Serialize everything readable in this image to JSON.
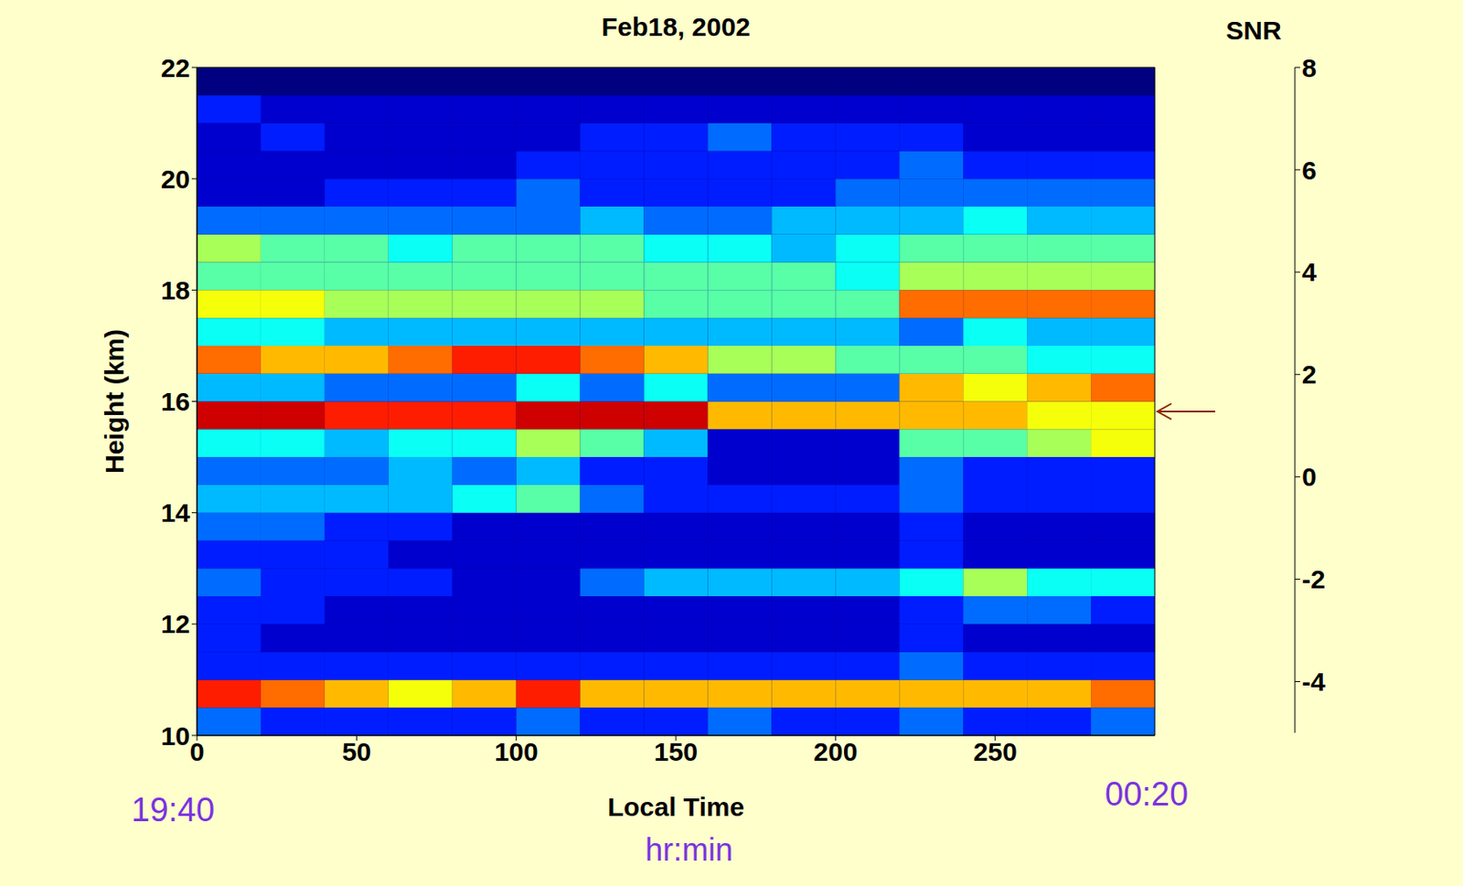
{
  "chart_data": {
    "type": "heatmap",
    "title": "Feb18, 2002",
    "x_label": "Local Time",
    "y_label": "Height (km)",
    "xlim": [
      0,
      300
    ],
    "xticks": [
      0,
      50,
      100,
      150,
      200,
      250
    ],
    "ylim": [
      10,
      22
    ],
    "yticks": [
      10,
      12,
      14,
      16,
      18,
      20,
      22
    ],
    "x_bins": [
      0,
      20,
      40,
      60,
      80,
      100,
      120,
      140,
      160,
      180,
      200,
      220,
      240,
      260,
      280,
      300
    ],
    "y_bins": [
      10,
      10.5,
      11,
      11.5,
      12,
      12.5,
      13,
      13.5,
      14,
      14.5,
      15,
      15.5,
      16,
      16.5,
      17,
      17.5,
      18,
      18.5,
      19,
      19.5,
      20,
      20.5,
      21,
      21.5,
      22
    ],
    "cells": [
      [
        -2,
        -3,
        -3,
        -3,
        -3,
        -2,
        -3,
        -3,
        -2,
        -3,
        -3,
        -2,
        -3,
        -3,
        -2
      ],
      [
        6,
        5,
        4,
        3,
        4,
        6,
        4,
        4,
        4,
        4,
        4,
        4,
        4,
        4,
        5
      ],
      [
        -3,
        -3,
        -3,
        -3,
        -3,
        -3,
        -3,
        -3,
        -3,
        -3,
        -3,
        -2,
        -3,
        -3,
        -3
      ],
      [
        -3,
        -4,
        -4,
        -4,
        -4,
        -4,
        -4,
        -4,
        -4,
        -4,
        -4,
        -3,
        -4,
        -4,
        -4
      ],
      [
        -3,
        -3,
        -4,
        -4,
        -4,
        -4,
        -4,
        -4,
        -4,
        -4,
        -4,
        -3,
        -2,
        -2,
        -3
      ],
      [
        -2,
        -3,
        -3,
        -3,
        -4,
        -4,
        -2,
        -1,
        -1,
        -1,
        -1,
        0,
        2,
        0,
        0
      ],
      [
        -3,
        -3,
        -3,
        -4,
        -4,
        -4,
        -4,
        -4,
        -4,
        -4,
        -4,
        -3,
        -4,
        -4,
        -4
      ],
      [
        -2,
        -2,
        -3,
        -3,
        -4,
        -4,
        -4,
        -4,
        -4,
        -4,
        -4,
        -3,
        -4,
        -4,
        -4
      ],
      [
        -1,
        -1,
        -1,
        -1,
        0,
        1,
        -2,
        -3,
        -3,
        -3,
        -3,
        -2,
        -3,
        -3,
        -3
      ],
      [
        -2,
        -2,
        -2,
        -1,
        -2,
        -1,
        -3,
        -3,
        -4,
        -4,
        -4,
        -2,
        -3,
        -3,
        -3
      ],
      [
        0,
        0,
        -1,
        0,
        0,
        2,
        1,
        -1,
        -4,
        -4,
        -4,
        1,
        1,
        2,
        3
      ],
      [
        7,
        7,
        6,
        6,
        6,
        7,
        7,
        7,
        4,
        4,
        4,
        4,
        4,
        3,
        3
      ],
      [
        -1,
        -1,
        -2,
        -2,
        -2,
        0,
        -2,
        0,
        -2,
        -2,
        -2,
        4,
        3,
        4,
        5
      ],
      [
        5,
        4,
        4,
        5,
        6,
        6,
        5,
        4,
        2,
        2,
        1,
        1,
        1,
        0,
        0
      ],
      [
        0,
        0,
        -1,
        -1,
        -1,
        -1,
        -1,
        -1,
        -1,
        -1,
        -1,
        -2,
        0,
        -1,
        -1
      ],
      [
        3,
        3,
        2,
        2,
        2,
        2,
        2,
        1,
        1,
        1,
        1,
        5,
        5,
        5,
        5
      ],
      [
        1,
        1,
        1,
        1,
        1,
        1,
        1,
        1,
        1,
        1,
        0,
        2,
        2,
        2,
        2
      ],
      [
        2,
        1,
        1,
        0,
        1,
        1,
        1,
        0,
        0,
        -1,
        0,
        1,
        1,
        1,
        1
      ],
      [
        -2,
        -2,
        -2,
        -2,
        -2,
        -2,
        -1,
        -2,
        -2,
        -1,
        -1,
        -1,
        0,
        -1,
        -1
      ],
      [
        -4,
        -4,
        -3,
        -3,
        -3,
        -2,
        -3,
        -3,
        -3,
        -3,
        -2,
        -2,
        -2,
        -2,
        -2
      ],
      [
        -4,
        -4,
        -4,
        -4,
        -4,
        -3,
        -3,
        -3,
        -3,
        -3,
        -3,
        -2,
        -3,
        -3,
        -3
      ],
      [
        -4,
        -3,
        -4,
        -4,
        -4,
        -4,
        -3,
        -3,
        -2,
        -3,
        -3,
        -3,
        -4,
        -4,
        -4
      ],
      [
        -3,
        -4,
        -4,
        -4,
        -4,
        -4,
        -4,
        -4,
        -4,
        -4,
        -4,
        -4,
        -4,
        -4,
        -4
      ],
      [
        -5,
        -5,
        -5,
        -5,
        -5,
        -5,
        -5,
        -5,
        -5,
        -5,
        -5,
        -5,
        -5,
        -5,
        -5
      ]
    ],
    "colorbar": {
      "label": "SNR",
      "range": [
        -5,
        8
      ],
      "ticks": [
        -4,
        -2,
        0,
        2,
        4,
        6,
        8
      ]
    },
    "annotations": [
      "19:40",
      "00:20",
      "hr:min"
    ]
  }
}
